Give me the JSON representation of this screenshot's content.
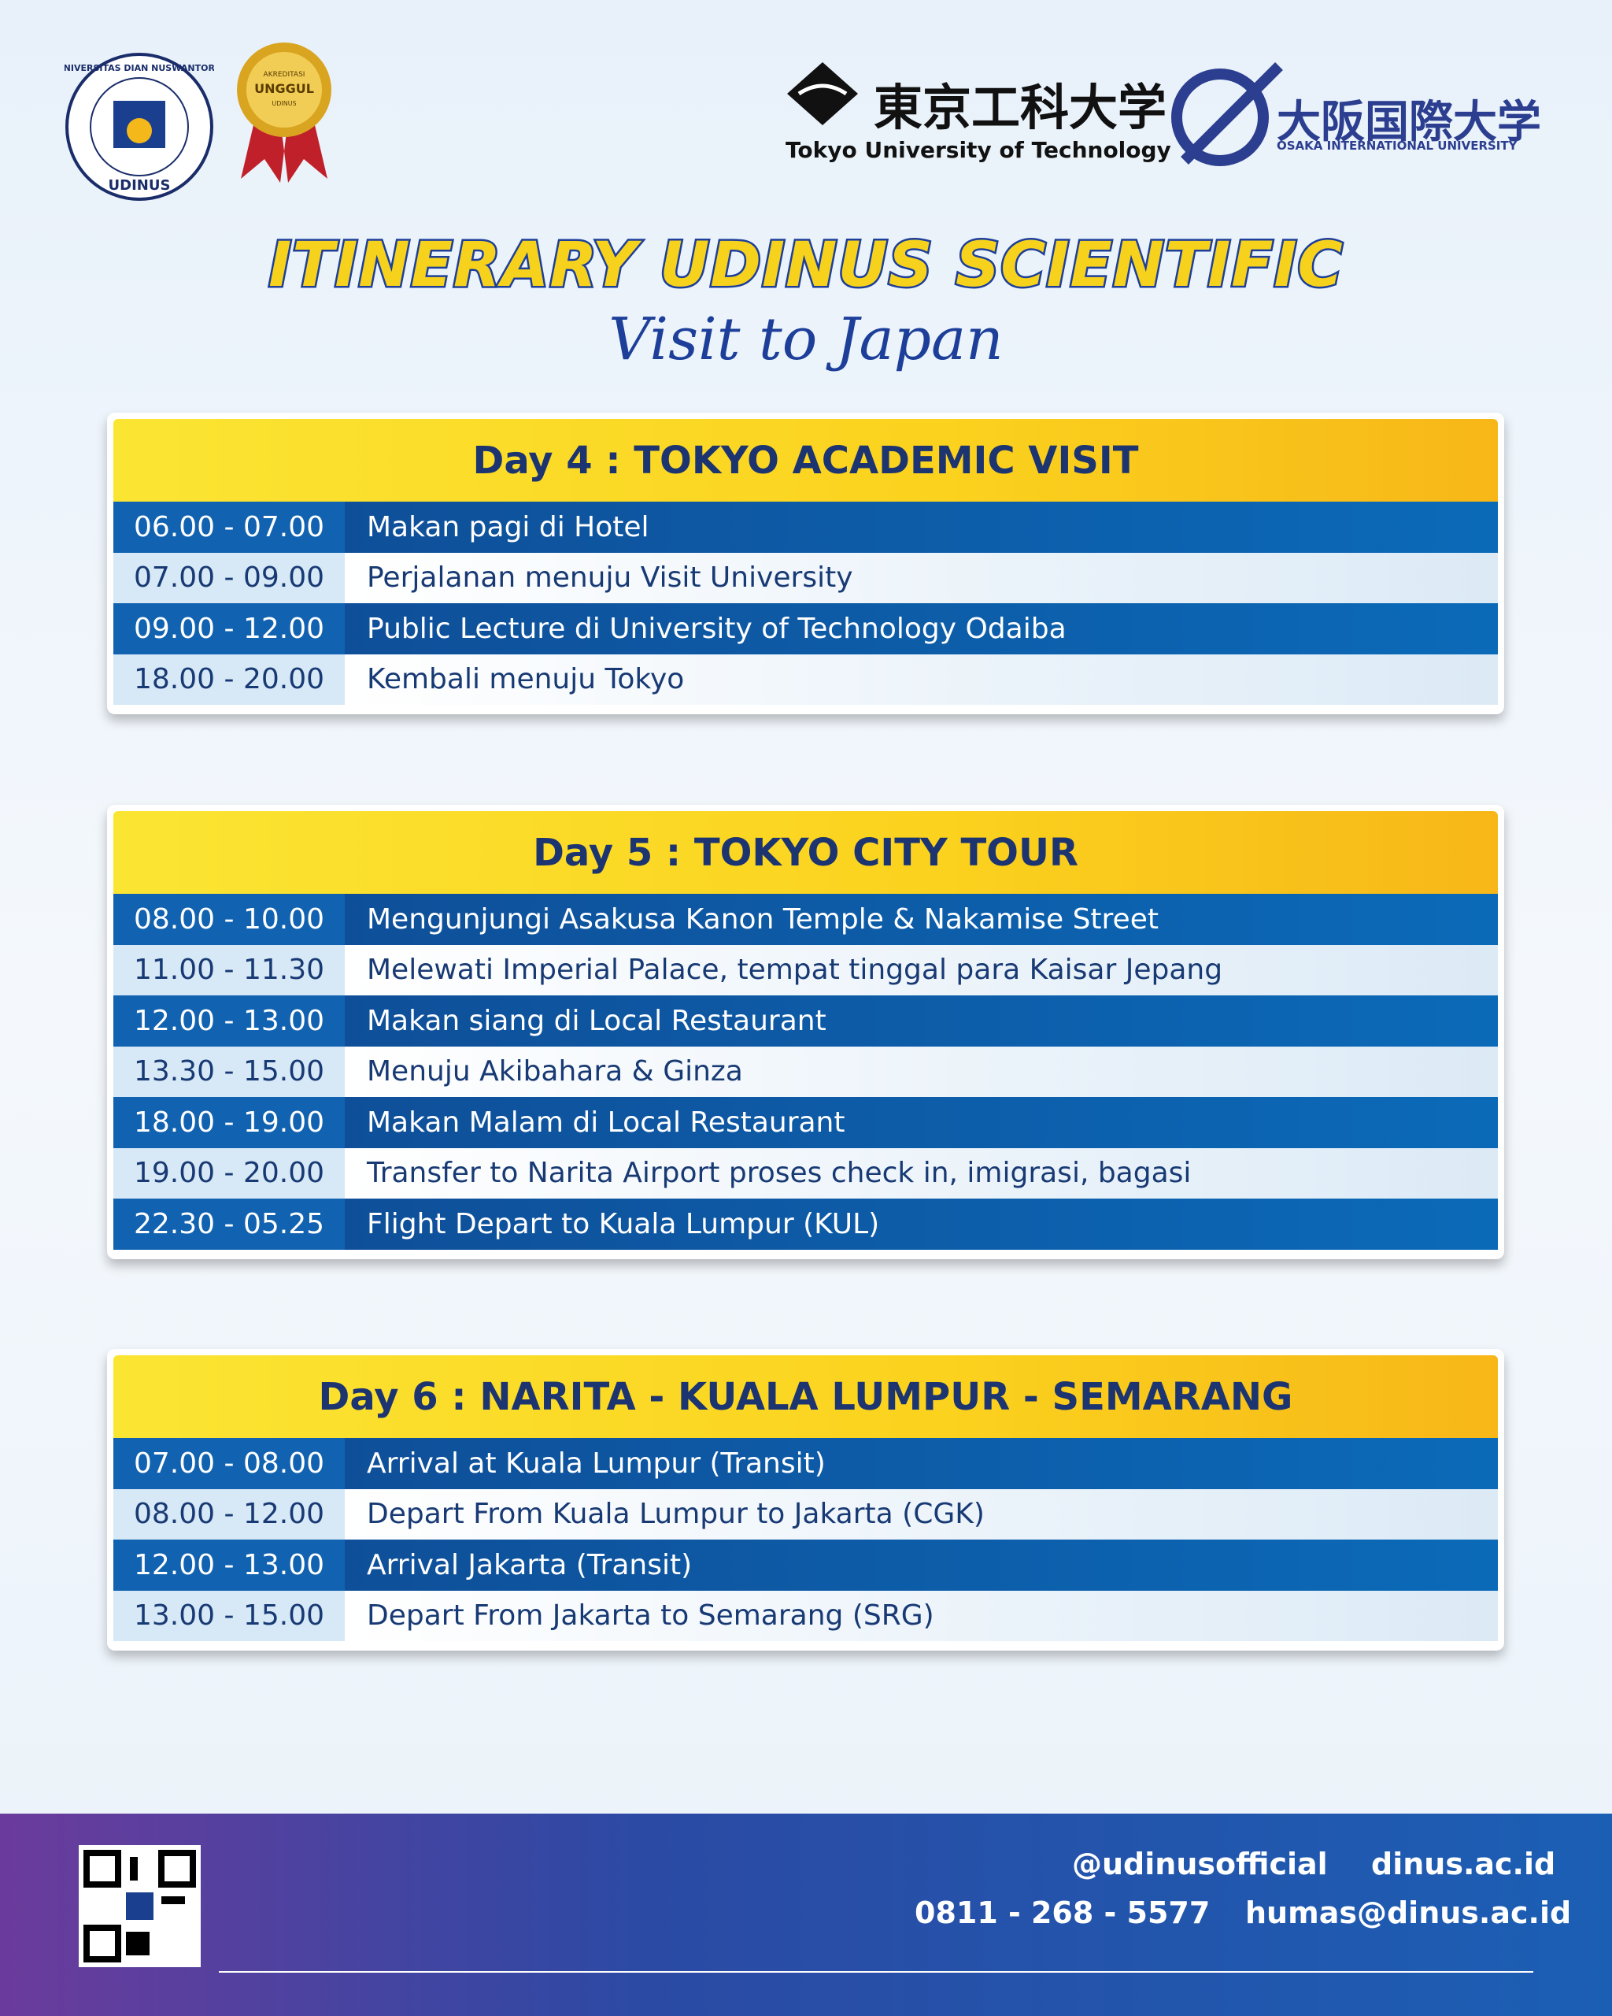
{
  "header": {
    "udinus_logo": {
      "ring_text": "UNIVERSITAS DIAN NUSWANTORO",
      "name": "UDINUS"
    },
    "badge": {
      "top": "AKREDITASI",
      "main": "UNGGUL",
      "bottom": "UDINUS"
    },
    "tokyo_logo": {
      "jp": "東京工科大学",
      "en": "Tokyo University of Technology"
    },
    "osaka_logo": {
      "jp": "大阪国際大学",
      "en": "OSAKA INTERNATIONAL UNIVERSITY"
    }
  },
  "title": "ITINERARY UDINUS SCIENTIFIC",
  "subtitle": "Visit to Japan",
  "days": [
    {
      "title": "Day 4 : TOKYO ACADEMIC VISIT",
      "rows": [
        [
          "06.00 - 07.00",
          "Makan pagi di Hotel"
        ],
        [
          "07.00 - 09.00",
          "Perjalanan menuju Visit University"
        ],
        [
          "09.00 - 12.00",
          "Public Lecture di University of Technology Odaiba"
        ],
        [
          "18.00 - 20.00",
          "Kembali menuju Tokyo"
        ]
      ]
    },
    {
      "title": "Day 5 : TOKYO CITY TOUR",
      "rows": [
        [
          "08.00 - 10.00",
          "Mengunjungi Asakusa Kanon Temple & Nakamise Street"
        ],
        [
          "11.00 - 11.30",
          "Melewati Imperial Palace, tempat tinggal para Kaisar Jepang"
        ],
        [
          "12.00 - 13.00",
          "Makan siang di Local Restaurant"
        ],
        [
          "13.30 - 15.00",
          "Menuju Akibahara & Ginza"
        ],
        [
          "18.00 - 19.00",
          "Makan Malam di Local Restaurant"
        ],
        [
          "19.00 - 20.00",
          "Transfer to Narita Airport proses check in, imigrasi, bagasi"
        ],
        [
          "22.30 - 05.25",
          "Flight Depart to Kuala Lumpur (KUL)"
        ]
      ]
    },
    {
      "title": "Day 6 : NARITA - KUALA LUMPUR - SEMARANG",
      "rows": [
        [
          "07.00 - 08.00",
          "Arrival at Kuala Lumpur (Transit)"
        ],
        [
          "08.00 - 12.00",
          "Depart From Kuala Lumpur to Jakarta (CGK)"
        ],
        [
          "12.00 - 13.00",
          "Arrival Jakarta (Transit)"
        ],
        [
          "13.00 - 15.00",
          "Depart From Jakarta to Semarang (SRG)"
        ]
      ]
    }
  ],
  "footer": {
    "social": "@udinusofficial",
    "website": "dinus.ac.id",
    "phone": "0811 - 268 - 5577",
    "email": "humas@dinus.ac.id"
  }
}
